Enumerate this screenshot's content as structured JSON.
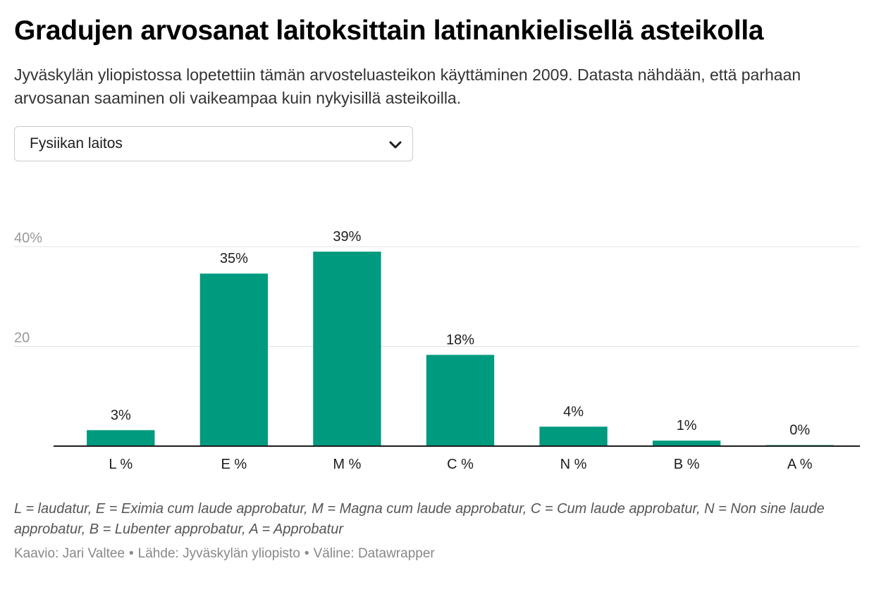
{
  "header": {
    "title": "Gradujen arvosanat laitoksittain latinankielisellä asteikolla",
    "subtitle": "Jyväskylän yliopistossa lopetettiin tämän arvosteluasteikon käyttäminen 2009. Datasta nähdään, että parhaan arvosanan saaminen oli vaikeampaa kuin nykyisillä asteikoilla."
  },
  "department_select": {
    "selected": "Fysiikan laitos",
    "icon": "chevron-down-icon"
  },
  "chart_data": {
    "type": "bar",
    "categories": [
      "L %",
      "E %",
      "M %",
      "C %",
      "N %",
      "B %",
      "A %"
    ],
    "values": [
      3.2,
      34.6,
      39.0,
      18.3,
      3.9,
      1.1,
      0.2
    ],
    "data_labels": [
      "3%",
      "35%",
      "39%",
      "18%",
      "4%",
      "1%",
      "0%"
    ],
    "yticks": [
      {
        "value": 20,
        "label": "20"
      },
      {
        "value": 40,
        "label": "40%"
      }
    ],
    "ylim": [
      0,
      40
    ],
    "grid": true,
    "bar_color": "#009a7e"
  },
  "notes": "L = laudatur, E = Eximia cum laude approbatur, M = Magna cum laude approbatur, C = Cum laude approbatur, N = Non sine laude approbatur, B = Lubenter approbatur, A = Approbatur",
  "footer": {
    "author": "Kaavio: Jari Valtee",
    "source": "Lähde: Jyväskylän yliopisto",
    "tool": "Väline: Datawrapper",
    "separator": "•"
  }
}
